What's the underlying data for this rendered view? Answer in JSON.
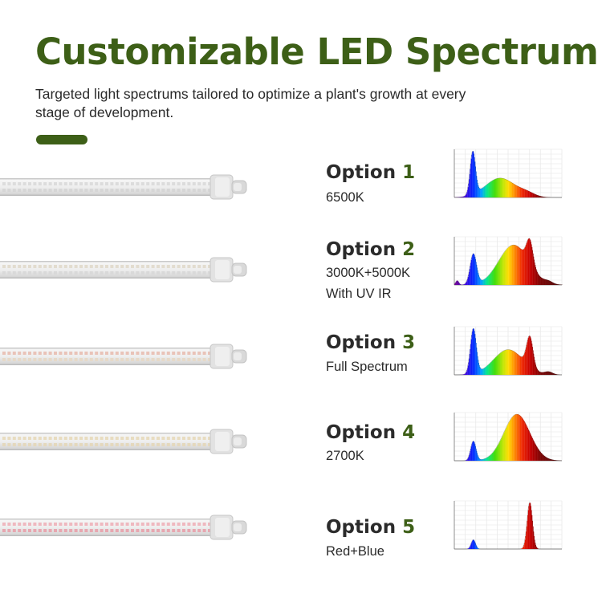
{
  "page": {
    "title": "Customizable LED Spectrum",
    "subtitle": "Targeted light spectrums tailored to optimize a plant's growth at every stage of development.",
    "accent_color": "#3d5f17"
  },
  "options": [
    {
      "label": "Option",
      "number": "1",
      "lines": [
        "6500K"
      ],
      "led_colors": [
        "#dcdcdc",
        "#d6d6d6"
      ],
      "spectrum": "6500K"
    },
    {
      "label": "Option",
      "number": "2",
      "lines": [
        "3000K+5000K",
        "With UV IR"
      ],
      "led_colors": [
        "#e2dccf",
        "#d9d9d9"
      ],
      "spectrum": "3000K+5000K UV IR"
    },
    {
      "label": "Option",
      "number": "3",
      "lines": [
        "Full Spectrum"
      ],
      "led_colors": [
        "#e9c3b8",
        "#e6d9c8"
      ],
      "spectrum": "Full Spectrum"
    },
    {
      "label": "Option",
      "number": "4",
      "lines": [
        "2700K"
      ],
      "led_colors": [
        "#e8dcc0",
        "#e4d8bd"
      ],
      "spectrum": "2700K"
    },
    {
      "label": "Option",
      "number": "5",
      "lines": [
        "Red+Blue"
      ],
      "led_colors": [
        "#efb8bf",
        "#e7a7b0"
      ],
      "spectrum": "Red+Blue"
    }
  ]
}
